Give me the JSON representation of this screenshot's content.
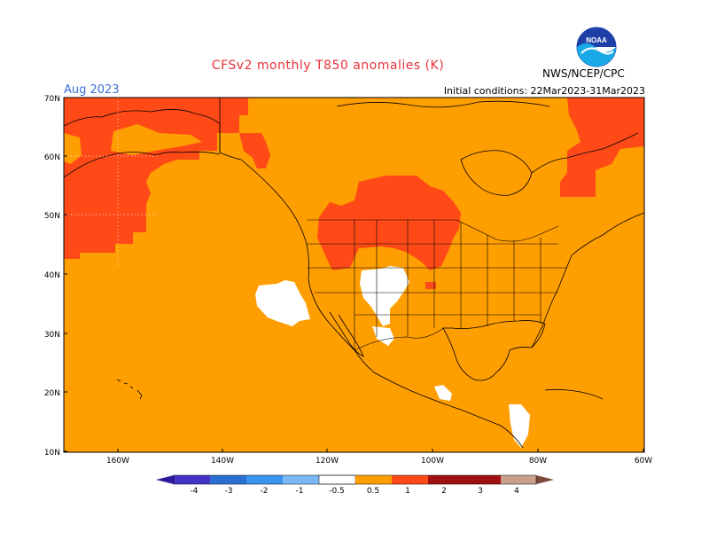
{
  "title": "CFSv2 monthly T850 anomalies (K)",
  "month": "Aug 2023",
  "initial_conditions": "Initial conditions: 22Mar2023-31Mar2023",
  "agency": "NWS/NCEP/CPC",
  "logo_text": "NOAA",
  "colors": {
    "title": "#e8333a",
    "month": "#3a6fd8",
    "orange_0_5_to_1": "#ff9e00",
    "red_1_to_2": "#ff4a18",
    "white_neutral": "#ffffff"
  },
  "map": {
    "lat_labels": [
      "70N",
      "60N",
      "50N",
      "40N",
      "30N",
      "20N",
      "10N"
    ],
    "lon_labels": [
      "160W",
      "140W",
      "120W",
      "100W",
      "80W",
      "60W"
    ]
  },
  "colorbar": {
    "labels": [
      "-4",
      "-3",
      "-2",
      "-1",
      "-0.5",
      "0.5",
      "1",
      "2",
      "3",
      "4"
    ],
    "colors": [
      "#2a1a9e",
      "#4433c4",
      "#2a6fd3",
      "#3a93ec",
      "#7ab8f5",
      "#ffffff",
      "#ff9e00",
      "#ff4a18",
      "#c80d00",
      "#a01010",
      "#c9a08e",
      "#7a4a3a"
    ]
  }
}
